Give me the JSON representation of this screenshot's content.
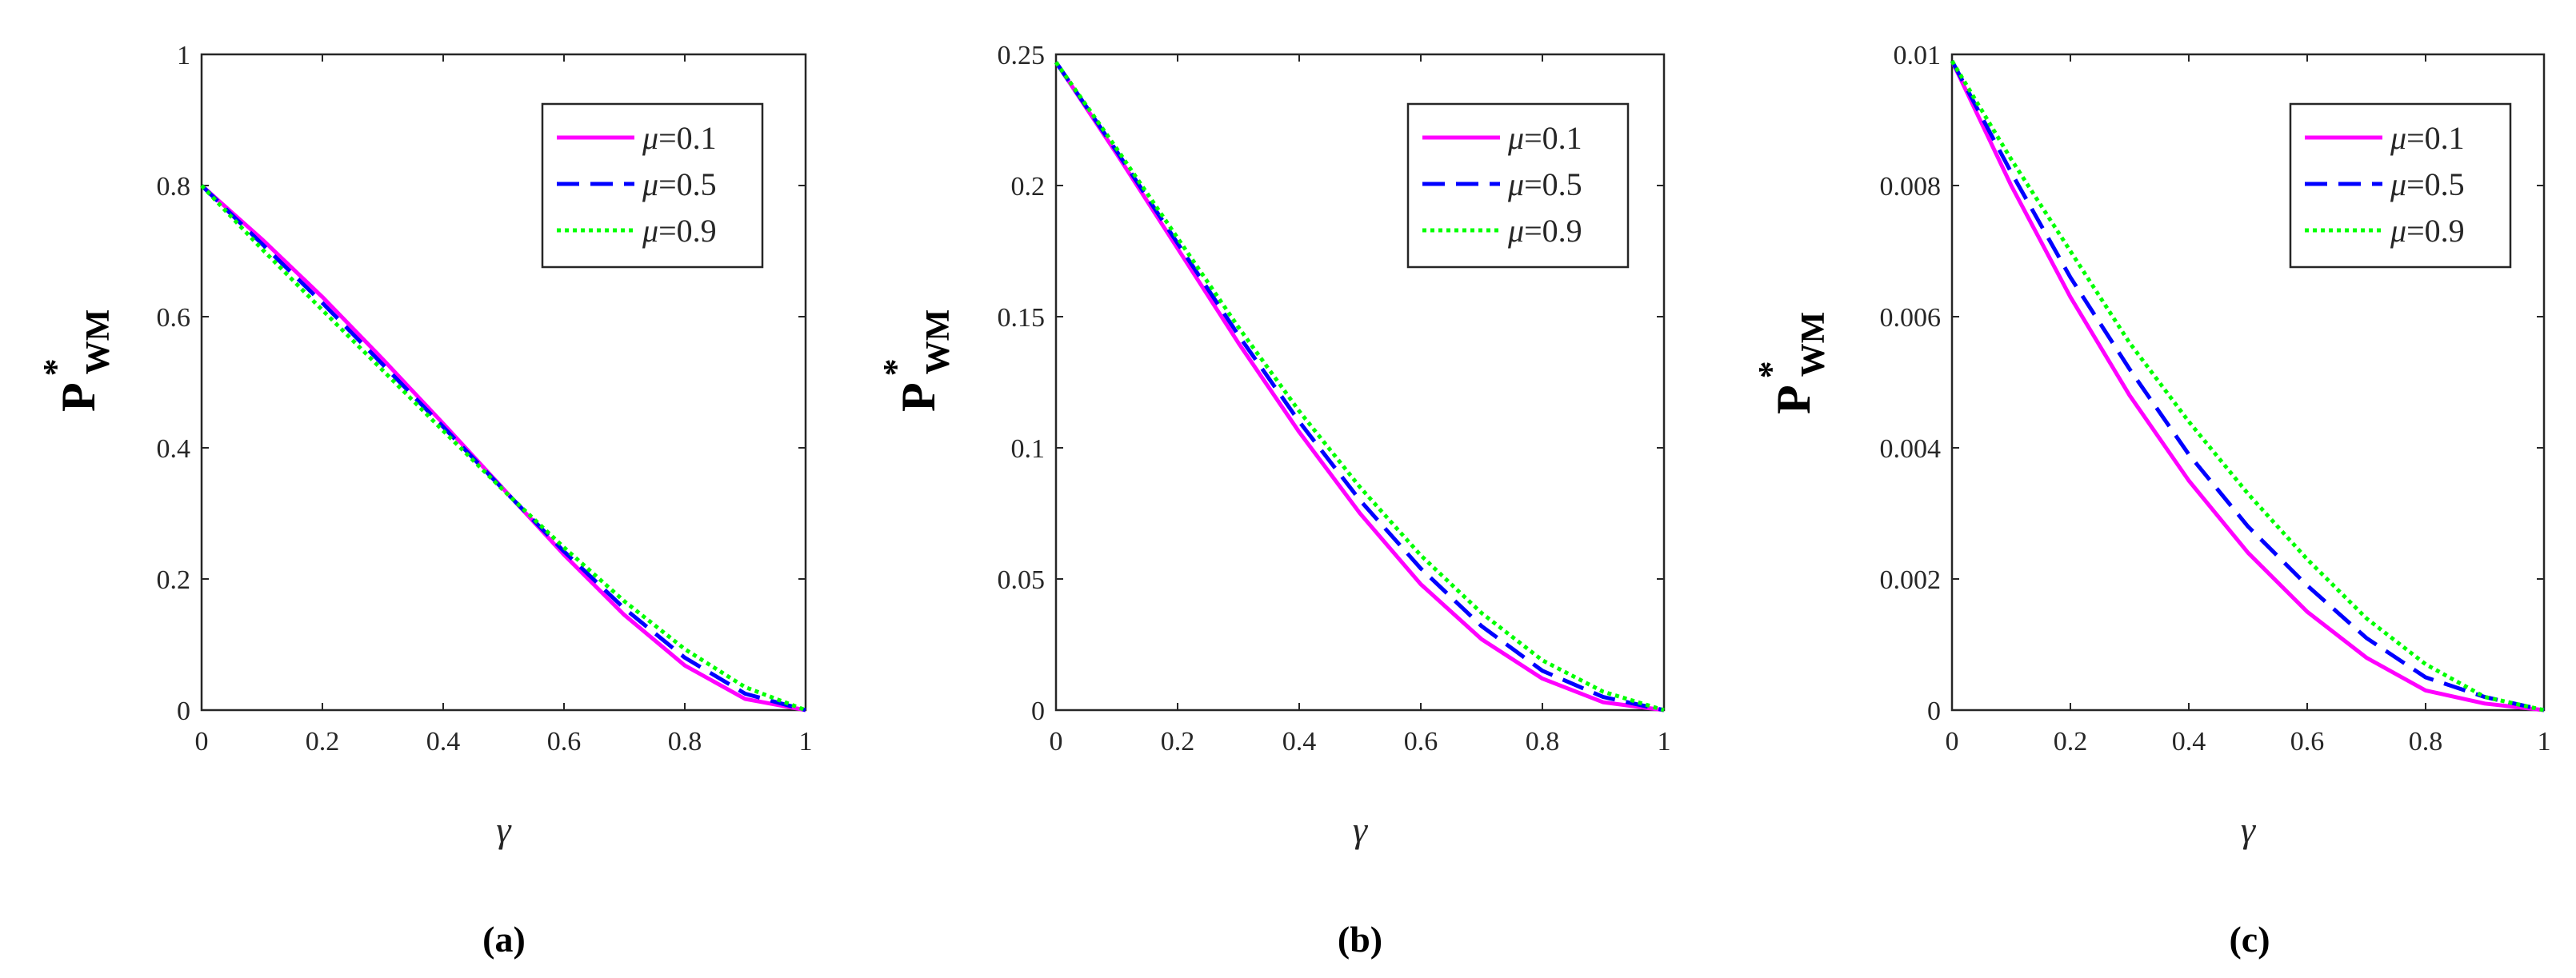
{
  "chart_data": [
    {
      "type": "line",
      "caption": "(a)",
      "xlabel": "γ",
      "ylabel": {
        "main": "P",
        "sup": "*",
        "sub": "WM"
      },
      "xlim": [
        0,
        1
      ],
      "ylim": [
        0,
        1
      ],
      "xticks": [
        "0",
        "0.2",
        "0.4",
        "0.6",
        "0.8",
        "1"
      ],
      "yticks": [
        "0",
        "0.2",
        "0.4",
        "0.6",
        "0.8",
        "1"
      ],
      "legend_position": "top-right",
      "x": [
        0.0,
        0.1,
        0.2,
        0.3,
        0.4,
        0.5,
        0.6,
        0.7,
        0.8,
        0.9,
        1.0
      ],
      "series": [
        {
          "name": "μ=0.1",
          "mu_value": "0.1",
          "color": "#ff00ff",
          "style": "solid",
          "values": [
            0.8,
            0.718,
            0.63,
            0.535,
            0.437,
            0.337,
            0.237,
            0.145,
            0.068,
            0.017,
            0.0
          ]
        },
        {
          "name": "μ=0.5",
          "mu_value": "0.5",
          "color": "#0000ff",
          "style": "dashed",
          "values": [
            0.8,
            0.711,
            0.621,
            0.527,
            0.432,
            0.336,
            0.242,
            0.155,
            0.08,
            0.025,
            0.0
          ]
        },
        {
          "name": "μ=0.9",
          "mu_value": "0.9",
          "color": "#00ff00",
          "style": "dotted",
          "values": [
            0.8,
            0.703,
            0.61,
            0.518,
            0.426,
            0.335,
            0.248,
            0.166,
            0.093,
            0.035,
            0.0
          ]
        }
      ]
    },
    {
      "type": "line",
      "caption": "(b)",
      "xlabel": "γ",
      "ylabel": {
        "main": "P",
        "sup": "*",
        "sub": "WM"
      },
      "xlim": [
        0,
        1
      ],
      "ylim": [
        0,
        0.25
      ],
      "xticks": [
        "0",
        "0.2",
        "0.4",
        "0.6",
        "0.8",
        "1"
      ],
      "yticks": [
        "0",
        "0.05",
        "0.1",
        "0.15",
        "0.2",
        "0.25"
      ],
      "legend_position": "top-right",
      "x": [
        0.0,
        0.1,
        0.2,
        0.3,
        0.4,
        0.5,
        0.6,
        0.7,
        0.8,
        0.9,
        1.0
      ],
      "series": [
        {
          "name": "μ=0.1",
          "mu_value": "0.1",
          "color": "#ff00ff",
          "style": "solid",
          "values": [
            0.247,
            0.212,
            0.176,
            0.14,
            0.106,
            0.075,
            0.048,
            0.027,
            0.012,
            0.003,
            0.0
          ]
        },
        {
          "name": "μ=0.5",
          "mu_value": "0.5",
          "color": "#0000ff",
          "style": "dashed",
          "values": [
            0.247,
            0.213,
            0.178,
            0.143,
            0.11,
            0.08,
            0.054,
            0.032,
            0.015,
            0.005,
            0.0
          ]
        },
        {
          "name": "μ=0.9",
          "mu_value": "0.9",
          "color": "#00ff00",
          "style": "dotted",
          "values": [
            0.247,
            0.214,
            0.18,
            0.146,
            0.114,
            0.085,
            0.059,
            0.037,
            0.019,
            0.007,
            0.0
          ]
        }
      ]
    },
    {
      "type": "line",
      "caption": "(c)",
      "xlabel": "γ",
      "ylabel": {
        "main": "P",
        "sup": "*",
        "sub": "WM"
      },
      "xlim": [
        0,
        1
      ],
      "ylim": [
        0,
        0.01
      ],
      "xticks": [
        "0",
        "0.2",
        "0.4",
        "0.6",
        "0.8",
        "1"
      ],
      "yticks": [
        "0",
        "0.002",
        "0.004",
        "0.006",
        "0.008",
        "0.01"
      ],
      "legend_position": "top-right",
      "x": [
        0.0,
        0.1,
        0.2,
        0.3,
        0.4,
        0.5,
        0.6,
        0.7,
        0.8,
        0.9,
        1.0
      ],
      "series": [
        {
          "name": "μ=0.1",
          "mu_value": "0.1",
          "color": "#ff00ff",
          "style": "solid",
          "values": [
            0.0099,
            0.008,
            0.0063,
            0.0048,
            0.0035,
            0.0024,
            0.0015,
            0.0008,
            0.0003,
            0.0001,
            0.0
          ]
        },
        {
          "name": "μ=0.5",
          "mu_value": "0.5",
          "color": "#0000ff",
          "style": "dashed",
          "values": [
            0.0099,
            0.0082,
            0.0066,
            0.0052,
            0.0039,
            0.0028,
            0.0019,
            0.0011,
            0.0005,
            0.0002,
            0.0
          ]
        },
        {
          "name": "μ=0.9",
          "mu_value": "0.9",
          "color": "#00ff00",
          "style": "dotted",
          "values": [
            0.0099,
            0.0084,
            0.007,
            0.0056,
            0.0044,
            0.0033,
            0.0023,
            0.0014,
            0.0007,
            0.0002,
            0.0
          ]
        }
      ]
    }
  ]
}
